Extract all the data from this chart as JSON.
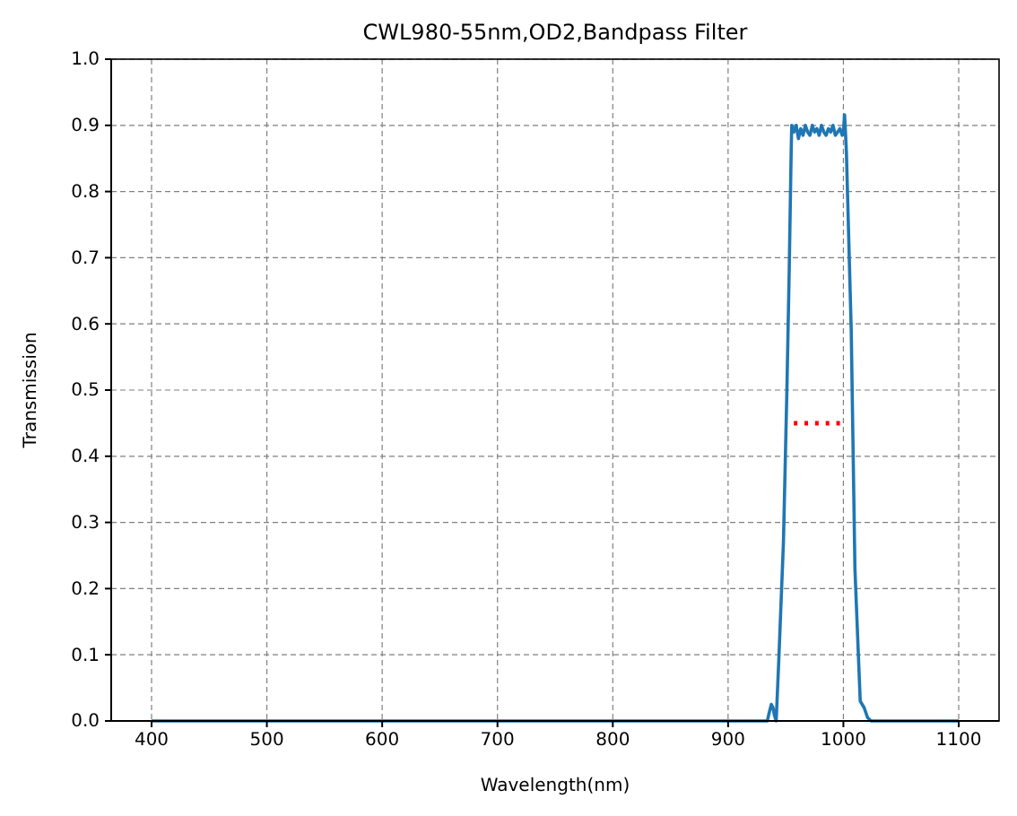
{
  "chart_data": {
    "type": "line",
    "title": "CWL980-55nm,OD2,Bandpass Filter",
    "xlabel": "Wavelength(nm)",
    "ylabel": "Transmission",
    "xlim": [
      365,
      1135
    ],
    "xticks": [
      400,
      500,
      600,
      700,
      800,
      900,
      1000,
      1100
    ],
    "ylim": [
      0,
      1
    ],
    "yticks": [
      {
        "value": 0,
        "label": "0.0"
      },
      0.1,
      0.2,
      0.3,
      0.4,
      0.5,
      0.6,
      0.7,
      0.8,
      0.9,
      {
        "value": 1,
        "label": "1.0"
      }
    ],
    "grid": true,
    "series": [
      {
        "color": "#1f77b4",
        "line_style": "solid",
        "x": [
          400,
          500,
          600,
          700,
          800,
          900,
          934,
          936,
          937.5,
          939,
          940,
          941.7,
          944,
          948,
          951,
          953,
          954.7,
          955.2,
          957,
          959,
          961,
          963,
          965,
          967,
          969,
          971,
          973,
          975,
          977,
          979,
          981,
          983,
          985,
          987,
          989,
          991,
          993,
          995,
          997,
          999,
          1000,
          1001,
          1001.5,
          1002.6,
          1006.8,
          1010,
          1014.6,
          1018,
          1021,
          1024,
          1050,
          1100
        ],
        "values": [
          0,
          0,
          0,
          0,
          0,
          0,
          0,
          0.015,
          0.025,
          0.02,
          0.01,
          0,
          0.093,
          0.27,
          0.5,
          0.68,
          0.86,
          0.9,
          0.89,
          0.9,
          0.88,
          0.895,
          0.885,
          0.9,
          0.89,
          0.885,
          0.9,
          0.89,
          0.895,
          0.885,
          0.9,
          0.89,
          0.885,
          0.895,
          0.89,
          0.9,
          0.885,
          0.89,
          0.895,
          0.885,
          0.89,
          0.916,
          0.9,
          0.86,
          0.59,
          0.23,
          0.03,
          0.02,
          0.005,
          0,
          0,
          0
        ]
      },
      {
        "type": "line",
        "color": "#ff0000",
        "line_style": "dotted",
        "x": [
          957,
          997
        ],
        "values": [
          0.45,
          0.45
        ]
      }
    ]
  }
}
